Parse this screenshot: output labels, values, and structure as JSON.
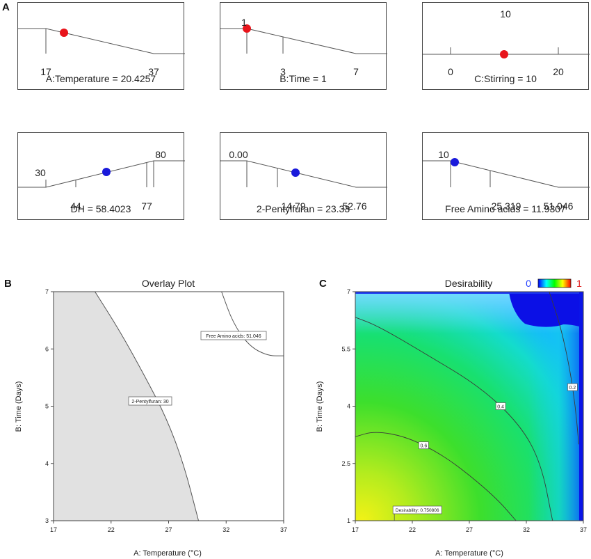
{
  "panel_labels": {
    "a": "A",
    "b": "B",
    "c": "C"
  },
  "ramps": [
    {
      "title": "A:Temperature = 20.4257",
      "ticks": [
        "17",
        "37"
      ],
      "point_color": "#e8141b"
    },
    {
      "title": "B:Time = 1",
      "ticks": [
        "1",
        "3",
        "7"
      ],
      "point_color": "#e8141b"
    },
    {
      "title": "C:Stirring = 10",
      "ticks": [
        "10",
        "0",
        "20"
      ],
      "point_color": "#e8141b"
    },
    {
      "title": "DH = 58.4023",
      "ticks": [
        "30",
        "80",
        "44",
        "77"
      ],
      "point_color": "#1a1adb"
    },
    {
      "title": "2-Pentylfuran = 23.33",
      "ticks": [
        "0.00",
        "14.79",
        "52.76"
      ],
      "point_color": "#1a1adb"
    },
    {
      "title": "Free Amino acids = 11.9307",
      "ticks": [
        "10",
        "25.319",
        "51.046"
      ],
      "point_color": "#1a1adb"
    }
  ],
  "chart_data": [
    {
      "type": "area",
      "title": "Overlay Plot",
      "xlabel": "A: Temperature (°C)",
      "ylabel": "B: Time (Days)",
      "xlim": [
        17,
        37
      ],
      "ylim": [
        3,
        7
      ],
      "x_ticks": [
        "17",
        "22",
        "27",
        "32",
        "37"
      ],
      "y_ticks": [
        "3",
        "4",
        "5",
        "6",
        "7"
      ],
      "shaded_region_color": "#e1e1e1",
      "boundary_2_pentylfuran": {
        "x": [
          20.6,
          22.8,
          25.0,
          26.8,
          28.3,
          29.6
        ],
        "y": [
          7.0,
          6.3,
          5.5,
          4.8,
          4.0,
          3.0
        ]
      },
      "boundary_free_amino_acids": {
        "x": [
          31.6,
          32.6,
          34.0,
          35.6,
          37.0
        ],
        "y": [
          7.0,
          6.45,
          6.05,
          5.88,
          5.88
        ]
      },
      "annotations": [
        "Free Amino acids: 51.046",
        "2-Pentylfuran: 30"
      ]
    },
    {
      "type": "heatmap",
      "title": "Desirability",
      "xlabel": "A: Temperature (°C)",
      "ylabel": "B: Time (Days)",
      "xlim": [
        17,
        37
      ],
      "ylim": [
        1,
        7
      ],
      "x_ticks": [
        "17",
        "22",
        "27",
        "32",
        "37"
      ],
      "y_ticks": [
        "1",
        "2.5",
        "4",
        "5.5",
        "7"
      ],
      "colorbar": {
        "min_label": "0",
        "max_label": "1",
        "colors": [
          "#0000ff",
          "#00ffff",
          "#00ff00",
          "#ffff00",
          "#ff0000"
        ]
      },
      "contours": [
        {
          "level_label": "0.2",
          "x": [
            34.0,
            35.0,
            35.8,
            36.3,
            36.6
          ],
          "y": [
            7.0,
            6.1,
            5.0,
            4.0,
            3.0
          ]
        },
        {
          "level_label": "0.4",
          "x": [
            17.0,
            19.0,
            23.0,
            28.0,
            31.5,
            33.3,
            34.3
          ],
          "y": [
            6.33,
            6.1,
            5.4,
            4.5,
            3.5,
            2.5,
            1.0
          ]
        },
        {
          "level_label": "0.6",
          "x": [
            17.0,
            18.7,
            21.5,
            24.5,
            27.0,
            29.5,
            31.1
          ],
          "y": [
            3.2,
            3.35,
            3.2,
            2.75,
            2.2,
            1.55,
            1.0
          ]
        }
      ],
      "optimum": {
        "label": "Desirability: 0.750806",
        "x": 20.4257,
        "y": 1.0
      }
    }
  ]
}
